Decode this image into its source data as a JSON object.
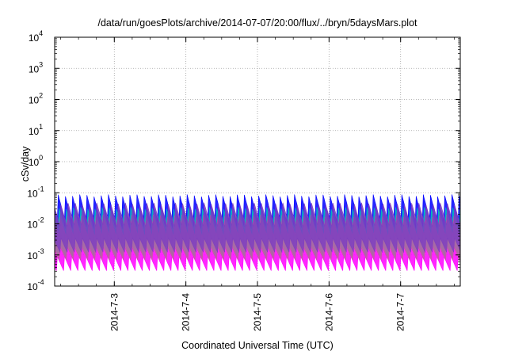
{
  "chart_data": {
    "type": "area",
    "title": "/data/run/goesPlots/archive/2014-07-07/20:00/flux/../bryn/5daysMars.plot",
    "xlabel": "Coordinated Universal Time (UTC)",
    "ylabel": "cSv/day",
    "y_scale": "log",
    "ylim": [
      0.0001,
      10000
    ],
    "y_ticks": [
      {
        "base": "10",
        "exp": "-4"
      },
      {
        "base": "10",
        "exp": "-3"
      },
      {
        "base": "10",
        "exp": "-2"
      },
      {
        "base": "10",
        "exp": "-1"
      },
      {
        "base": "10",
        "exp": "0"
      },
      {
        "base": "10",
        "exp": "1"
      },
      {
        "base": "10",
        "exp": "2"
      },
      {
        "base": "10",
        "exp": "3"
      },
      {
        "base": "10",
        "exp": "4"
      }
    ],
    "xlim": [
      "2014-07-02 04:00",
      "2014-07-07 20:00"
    ],
    "x_ticks": [
      "2014-7-3",
      "2014-7-4",
      "2014-7-5",
      "2014-7-6",
      "2014-7-7"
    ],
    "grid": true,
    "pattern": {
      "description_free": true,
      "cycles_per_day": 10,
      "bands": [
        {
          "color": "#ff00ff",
          "peak": 0.012,
          "trough": 0.0004
        },
        {
          "color": "#0000ff",
          "peak": 0.09,
          "trough": 0.0022
        },
        {
          "color": "#00bfbf",
          "peak": 0.035,
          "trough": 0.0012
        },
        {
          "color": "#bf5f9f",
          "peak": 0.02,
          "trough": 0.0009
        },
        {
          "color": "#7f3fbf",
          "peak": 0.05,
          "trough": 0.0016
        }
      ]
    }
  }
}
